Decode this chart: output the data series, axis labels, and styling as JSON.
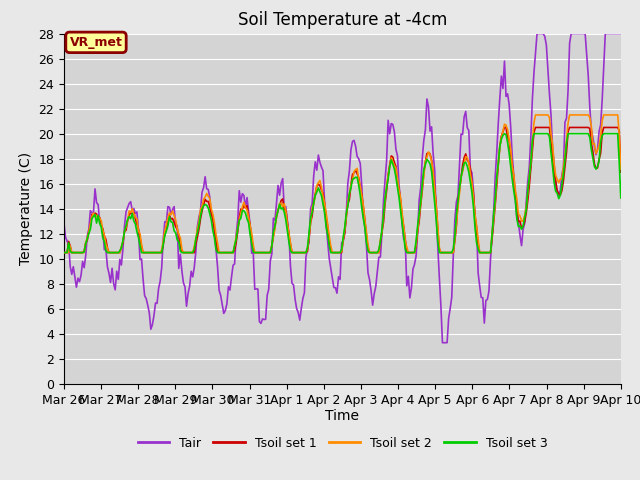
{
  "title": "Soil Temperature at -4cm",
  "xlabel": "Time",
  "ylabel": "Temperature (C)",
  "ylim": [
    0,
    28
  ],
  "yticks": [
    0,
    2,
    4,
    6,
    8,
    10,
    12,
    14,
    16,
    18,
    20,
    22,
    24,
    26,
    28
  ],
  "date_labels": [
    "Mar 26",
    "Mar 27",
    "Mar 28",
    "Mar 29",
    "Mar 30",
    "Mar 31",
    "Apr 1",
    "Apr 2",
    "Apr 3",
    "Apr 4",
    "Apr 5",
    "Apr 6",
    "Apr 7",
    "Apr 8",
    "Apr 9",
    "Apr 10"
  ],
  "annotation_text": "VR_met",
  "annotation_bg": "#ffff99",
  "annotation_border": "#8B0000",
  "annotation_text_color": "#8B0000",
  "line_colors": {
    "Tair": "#9932CC",
    "Tsoil set 1": "#CC0000",
    "Tsoil set 2": "#FF8C00",
    "Tsoil set 3": "#00CC00"
  },
  "legend_labels": [
    "Tair",
    "Tsoil set 1",
    "Tsoil set 2",
    "Tsoil set 3"
  ],
  "bg_color": "#e8e8e8",
  "plot_bg_color": "#d4d4d4",
  "grid_color": "#ffffff",
  "title_fontsize": 12,
  "axis_fontsize": 10,
  "tick_fontsize": 9
}
